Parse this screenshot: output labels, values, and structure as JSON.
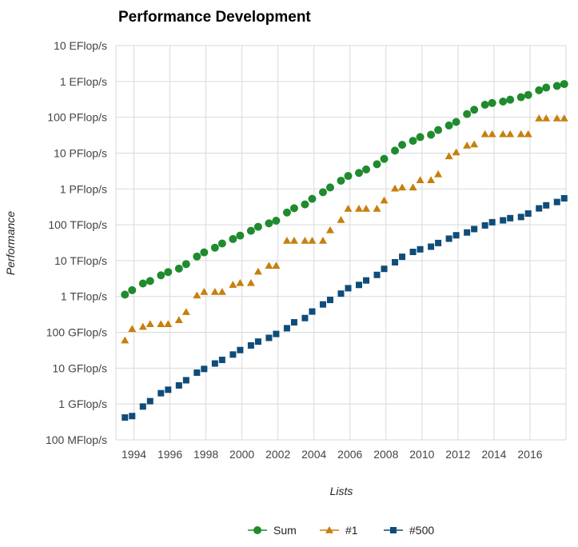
{
  "chart_data": {
    "type": "scatter",
    "title": "Performance Development",
    "xlabel": "Lists",
    "ylabel": "Performance",
    "y_scale": "log",
    "ylim_flops": [
      100000000.0,
      1e+19
    ],
    "y_ticks": [
      {
        "value": 1e+19,
        "label": "10 EFlop/s"
      },
      {
        "value": 1e+18,
        "label": "1 EFlop/s"
      },
      {
        "value": 1e+17,
        "label": "100 PFlop/s"
      },
      {
        "value": 1e+16,
        "label": "10 PFlop/s"
      },
      {
        "value": 1000000000000000.0,
        "label": "1 PFlop/s"
      },
      {
        "value": 100000000000000.0,
        "label": "100 TFlop/s"
      },
      {
        "value": 10000000000000.0,
        "label": "10 TFlop/s"
      },
      {
        "value": 1000000000000.0,
        "label": "1 TFlop/s"
      },
      {
        "value": 100000000000.0,
        "label": "100 GFlop/s"
      },
      {
        "value": 10000000000.0,
        "label": "10 GFlop/s"
      },
      {
        "value": 1000000000.0,
        "label": "1 GFlop/s"
      },
      {
        "value": 100000000.0,
        "label": "100 MFlop/s"
      }
    ],
    "xlim": [
      1993.0,
      2018.0
    ],
    "x_ticks": [
      1994,
      1996,
      1998,
      2000,
      2002,
      2004,
      2006,
      2008,
      2010,
      2012,
      2014,
      2016
    ],
    "x": [
      1993.5,
      1993.9,
      1994.5,
      1994.9,
      1995.5,
      1995.9,
      1996.5,
      1996.9,
      1997.5,
      1997.9,
      1998.5,
      1998.9,
      1999.5,
      1999.9,
      2000.5,
      2000.9,
      2001.5,
      2001.9,
      2002.5,
      2002.9,
      2003.5,
      2003.9,
      2004.5,
      2004.9,
      2005.5,
      2005.9,
      2006.5,
      2006.9,
      2007.5,
      2007.9,
      2008.5,
      2008.9,
      2009.5,
      2009.9,
      2010.5,
      2010.9,
      2011.5,
      2011.9,
      2012.5,
      2012.9,
      2013.5,
      2013.9,
      2014.5,
      2014.9,
      2015.5,
      2015.9,
      2016.5,
      2016.9,
      2017.5,
      2017.9
    ],
    "series": [
      {
        "name": "Sum",
        "color": "#1f8b2e",
        "marker": "circle",
        "values": [
          1130000000000.0,
          1500000000000.0,
          2300000000000.0,
          2700000000000.0,
          3900000000000.0,
          4800000000000.0,
          6000000000000.0,
          8000000000000.0,
          13000000000000.0,
          17000000000000.0,
          23000000000000.0,
          30000000000000.0,
          40000000000000.0,
          50000000000000.0,
          68000000000000.0,
          88000000000000.0,
          110000000000000.0,
          130000000000000.0,
          220000000000000.0,
          290000000000000.0,
          370000000000000.0,
          530000000000000.0,
          810000000000000.0,
          1100000000000000.0,
          1700000000000000.0,
          2300000000000000.0,
          2800000000000000.0,
          3500000000000000.0,
          4900000000000000.0,
          6900000000000000.0,
          1.17e+16,
          1.7e+16,
          2.2e+16,
          2.8e+16,
          3.25e+16,
          4.4e+16,
          5.9e+16,
          7.4e+16,
          1.23e+17,
          1.62e+17,
          2.23e+17,
          2.5e+17,
          2.74e+17,
          3.09e+17,
          3.63e+17,
          4.2e+17,
          5.67e+17,
          6.72e+17,
          7.49e+17,
          8.45e+17
        ]
      },
      {
        "name": "#1",
        "color": "#c77f0e",
        "marker": "triangle",
        "values": [
          59700000000.0,
          124000000000.0,
          143000000000.0,
          170000000000.0,
          170000000000.0,
          170000000000.0,
          220000000000.0,
          368000000000.0,
          1070000000000.0,
          1340000000000.0,
          1340000000000.0,
          1340000000000.0,
          2120000000000.0,
          2380000000000.0,
          2380000000000.0,
          4940000000000.0,
          7230000000000.0,
          7230000000000.0,
          35900000000000.0,
          35900000000000.0,
          35900000000000.0,
          35900000000000.0,
          35900000000000.0,
          70700000000000.0,
          137000000000000.0,
          281000000000000.0,
          281000000000000.0,
          281000000000000.0,
          281000000000000.0,
          478000000000000.0,
          1030000000000000.0,
          1100000000000000.0,
          1100000000000000.0,
          1760000000000000.0,
          1760000000000000.0,
          2570000000000000.0,
          8160000000000000.0,
          1.05e+16,
          1.63e+16,
          1.76e+16,
          3.39e+16,
          3.39e+16,
          3.39e+16,
          3.39e+16,
          3.39e+16,
          3.39e+16,
          9.3e+16,
          9.3e+16,
          9.3e+16,
          9.3e+16
        ]
      },
      {
        "name": "#500",
        "color": "#0f4c79",
        "marker": "square",
        "values": [
          420000000.0,
          460000000.0,
          850000000.0,
          1200000000.0,
          2000000000.0,
          2500000000.0,
          3300000000.0,
          4600000000.0,
          7500000000.0,
          9500000000.0,
          13500000000.0,
          17000000000.0,
          24000000000.0,
          32000000000.0,
          43000000000.0,
          55000000000.0,
          70000000000.0,
          90000000000.0,
          130000000000.0,
          190000000000.0,
          250000000000.0,
          380000000000.0,
          600000000000.0,
          800000000000.0,
          1200000000000.0,
          1700000000000.0,
          2100000000000.0,
          2800000000000.0,
          4000000000000.0,
          5900000000000.0,
          9000000000000.0,
          12800000000000.0,
          17500000000000.0,
          20700000000000.0,
          24500000000000.0,
          31000000000000.0,
          41000000000000.0,
          51000000000000.0,
          61000000000000.0,
          76000000000000.0,
          96000000000000.0,
          118000000000000.0,
          133000000000000.0,
          153000000000000.0,
          165000000000000.0,
          206000000000000.0,
          287000000000000.0,
          349000000000000.0,
          432000000000000.0,
          548000000000000.0
        ]
      }
    ],
    "grid": true,
    "legend": {
      "placement": "bottom-center",
      "labels": [
        "Sum",
        "#1",
        "#500"
      ]
    }
  }
}
